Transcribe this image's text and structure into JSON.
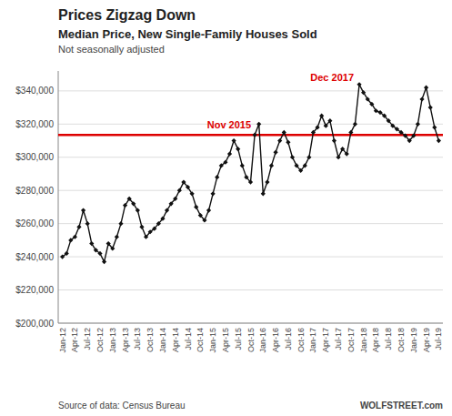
{
  "chart_data": {
    "type": "line",
    "title": "Prices Zigzag Down",
    "subtitle": "Median Price, New Single-Family Houses Sold",
    "note": "Not seasonally adjusted",
    "source": "Source of data: Census Bureau",
    "credit": "WOLFSTREET.com",
    "categories": [
      "Jan-12",
      null,
      null,
      "Apr-12",
      null,
      null,
      "Jul-12",
      null,
      null,
      "Oct-12",
      null,
      null,
      "Jan-13",
      null,
      null,
      "Apr-13",
      null,
      null,
      "Jul-13",
      null,
      null,
      "Oct-13",
      null,
      null,
      "Jan-14",
      null,
      null,
      "Apr-14",
      null,
      null,
      "Jul-14",
      null,
      null,
      "Oct-14",
      null,
      null,
      "Jan-15",
      null,
      null,
      "Apr-15",
      null,
      null,
      "Jul-15",
      null,
      null,
      "Oct-15",
      null,
      null,
      "Jan-16",
      null,
      null,
      "Apr-16",
      null,
      null,
      "Jul-16",
      null,
      null,
      "Oct-16",
      null,
      null,
      "Jan-17",
      null,
      null,
      "Apr-17",
      null,
      null,
      "Jul-17",
      null,
      null,
      "Oct-17",
      null,
      null,
      "Jan-18",
      null,
      null,
      "Apr-18",
      null,
      null,
      "Jul-18",
      null,
      null,
      "Oct-18",
      null,
      null,
      "Jan-19",
      null,
      null,
      "Apr-19",
      null,
      null,
      "Jul-19"
    ],
    "values": [
      240000,
      242000,
      250000,
      252000,
      258000,
      268000,
      260000,
      248000,
      244000,
      242000,
      237000,
      248000,
      245000,
      252000,
      260000,
      271000,
      275000,
      272000,
      268000,
      258000,
      252000,
      255000,
      257000,
      260000,
      263000,
      268000,
      272000,
      275000,
      280000,
      285000,
      282000,
      278000,
      270000,
      265000,
      262000,
      268000,
      278000,
      288000,
      295000,
      297000,
      302000,
      310000,
      305000,
      295000,
      288000,
      285000,
      313500,
      320000,
      278000,
      285000,
      295000,
      303000,
      310000,
      315000,
      309000,
      300000,
      295000,
      292000,
      295000,
      300000,
      315000,
      318000,
      325000,
      319000,
      322000,
      310000,
      300000,
      305000,
      302000,
      315000,
      320000,
      343900,
      339000,
      335000,
      332000,
      328000,
      327000,
      325000,
      322000,
      319000,
      317000,
      315000,
      313000,
      310000,
      313000,
      320000,
      335000,
      342000,
      330000,
      318000,
      310000
    ],
    "color": "#111111",
    "marker": "diamond",
    "reference_line": {
      "value": 313500,
      "label": "Nov 2015",
      "color": "#dd0000"
    },
    "annotations": [
      {
        "text": "Dec 2017",
        "index": 71
      }
    ],
    "ylim": [
      200000,
      352000
    ],
    "yticks": [
      {
        "value": 200000,
        "label": "$200,000"
      },
      {
        "value": 220000,
        "label": "$220,000"
      },
      {
        "value": 240000,
        "label": "$240,000"
      },
      {
        "value": 260000,
        "label": "$260,000"
      },
      {
        "value": 280000,
        "label": "$280,000"
      },
      {
        "value": 300000,
        "label": "$300,000"
      },
      {
        "value": 320000,
        "label": "$320,000"
      },
      {
        "value": 340000,
        "label": "$340,000"
      }
    ],
    "grid": true
  }
}
